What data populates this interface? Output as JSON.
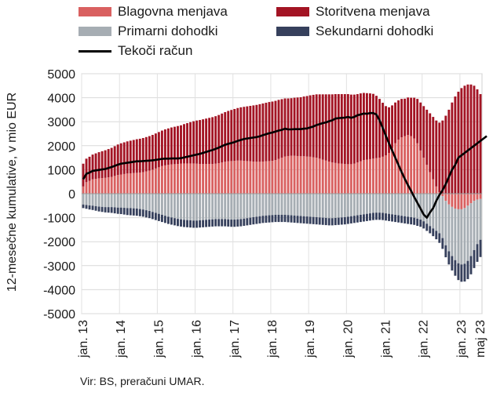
{
  "chart_data": {
    "type": "bar",
    "stacked": true,
    "ylabel": "12-mesečne kumulative, v mio EUR",
    "ylim": [
      -5000,
      5000
    ],
    "yticks": [
      5000,
      4000,
      3000,
      2000,
      1000,
      0,
      -1000,
      -2000,
      -3000,
      -4000,
      -5000
    ],
    "x_tick_labels": [
      "jan. 13",
      "jan. 14",
      "jan. 15",
      "jan. 16",
      "jan. 17",
      "jan. 18",
      "jan. 19",
      "jan. 20",
      "jan. 21",
      "jan. 22",
      "jan. 23",
      "maj 23"
    ],
    "grid": true,
    "legend_position": "top",
    "source": "Vir: BS, preračuni UMAR.",
    "months_start": "2013-01",
    "series": [
      {
        "name": "Blagovna menjava",
        "color": "#d96060",
        "values": [
          300,
          480,
          540,
          600,
          620,
          640,
          650,
          660,
          680,
          700,
          740,
          780,
          800,
          820,
          840,
          850,
          860,
          870,
          880,
          900,
          930,
          960,
          1000,
          1050,
          1100,
          1150,
          1180,
          1200,
          1220,
          1230,
          1240,
          1250,
          1260,
          1260,
          1260,
          1260,
          1250,
          1240,
          1240,
          1240,
          1240,
          1240,
          1250,
          1270,
          1300,
          1330,
          1350,
          1360,
          1370,
          1380,
          1380,
          1370,
          1360,
          1350,
          1340,
          1330,
          1330,
          1340,
          1350,
          1360,
          1370,
          1400,
          1450,
          1500,
          1550,
          1570,
          1580,
          1580,
          1570,
          1560,
          1560,
          1550,
          1540,
          1520,
          1500,
          1460,
          1420,
          1380,
          1340,
          1300,
          1280,
          1260,
          1250,
          1240,
          1230,
          1230,
          1250,
          1300,
          1350,
          1400,
          1420,
          1440,
          1460,
          1480,
          1500,
          1540,
          1600,
          1700,
          1900,
          2100,
          2250,
          2350,
          2400,
          2450,
          2400,
          2300,
          2100,
          1800,
          1500,
          1200,
          900,
          600,
          300,
          60,
          -100,
          -300,
          -450,
          -550,
          -620,
          -650,
          -650,
          -600,
          -500,
          -400,
          -300,
          -250,
          -220
        ]
      },
      {
        "name": "Storitvena menjava",
        "color": "#a31424",
        "values": [
          950,
          980,
          1000,
          1030,
          1060,
          1090,
          1120,
          1150,
          1180,
          1210,
          1240,
          1270,
          1300,
          1320,
          1340,
          1360,
          1380,
          1400,
          1410,
          1420,
          1430,
          1440,
          1450,
          1460,
          1470,
          1480,
          1500,
          1520,
          1540,
          1560,
          1580,
          1600,
          1640,
          1680,
          1720,
          1760,
          1800,
          1830,
          1860,
          1890,
          1920,
          1950,
          1980,
          2010,
          2040,
          2070,
          2100,
          2130,
          2160,
          2190,
          2220,
          2250,
          2280,
          2310,
          2340,
          2370,
          2400,
          2420,
          2440,
          2460,
          2470,
          2470,
          2460,
          2440,
          2420,
          2400,
          2400,
          2420,
          2440,
          2460,
          2490,
          2520,
          2560,
          2600,
          2640,
          2680,
          2720,
          2760,
          2800,
          2840,
          2870,
          2890,
          2900,
          2910,
          2920,
          2900,
          2880,
          2850,
          2830,
          2800,
          2770,
          2740,
          2700,
          2600,
          2450,
          2250,
          2050,
          1900,
          1780,
          1700,
          1640,
          1600,
          1560,
          1560,
          1600,
          1700,
          1850,
          2000,
          2150,
          2300,
          2450,
          2600,
          2750,
          2900,
          3050,
          3250,
          3500,
          3800,
          4050,
          4250,
          4400,
          4500,
          4550,
          4550,
          4500,
          4350,
          4150,
          3950,
          3900
        ]
      },
      {
        "name": "Primarni dohodki",
        "color": "#a6adb3",
        "values": [
          -450,
          -470,
          -490,
          -500,
          -520,
          -540,
          -550,
          -560,
          -560,
          -560,
          -570,
          -580,
          -580,
          -590,
          -600,
          -600,
          -610,
          -620,
          -640,
          -660,
          -690,
          -720,
          -760,
          -800,
          -840,
          -880,
          -920,
          -960,
          -990,
          -1020,
          -1050,
          -1070,
          -1090,
          -1100,
          -1110,
          -1120,
          -1120,
          -1110,
          -1100,
          -1090,
          -1080,
          -1070,
          -1060,
          -1060,
          -1060,
          -1060,
          -1070,
          -1080,
          -1080,
          -1070,
          -1060,
          -1040,
          -1020,
          -1000,
          -980,
          -960,
          -940,
          -920,
          -910,
          -900,
          -890,
          -880,
          -880,
          -880,
          -880,
          -890,
          -900,
          -910,
          -920,
          -930,
          -940,
          -950,
          -960,
          -970,
          -980,
          -990,
          -1000,
          -1010,
          -1020,
          -1020,
          -1010,
          -1000,
          -990,
          -980,
          -960,
          -940,
          -920,
          -900,
          -880,
          -860,
          -840,
          -820,
          -800,
          -790,
          -790,
          -800,
          -820,
          -840,
          -860,
          -880,
          -900,
          -920,
          -940,
          -960,
          -980,
          -1000,
          -1040,
          -1080,
          -1150,
          -1250,
          -1350,
          -1450,
          -1550,
          -1650,
          -1750,
          -1850,
          -1950,
          -2050,
          -2150,
          -2250,
          -2300,
          -2320,
          -2300,
          -2200,
          -2050,
          -1850,
          -1700,
          -1550,
          -1450
        ]
      },
      {
        "name": "Sekundarni dohodki",
        "color": "#36405c",
        "values": [
          -150,
          -160,
          -170,
          -180,
          -190,
          -200,
          -210,
          -220,
          -230,
          -240,
          -250,
          -260,
          -270,
          -280,
          -290,
          -300,
          -300,
          -300,
          -300,
          -300,
          -300,
          -300,
          -300,
          -300,
          -300,
          -300,
          -300,
          -300,
          -300,
          -300,
          -300,
          -300,
          -300,
          -300,
          -300,
          -300,
          -300,
          -300,
          -300,
          -300,
          -300,
          -300,
          -300,
          -300,
          -300,
          -300,
          -300,
          -300,
          -300,
          -300,
          -300,
          -300,
          -300,
          -300,
          -300,
          -300,
          -300,
          -300,
          -300,
          -300,
          -300,
          -300,
          -300,
          -300,
          -300,
          -300,
          -300,
          -300,
          -300,
          -300,
          -300,
          -300,
          -300,
          -300,
          -300,
          -300,
          -300,
          -300,
          -300,
          -300,
          -300,
          -300,
          -300,
          -300,
          -300,
          -300,
          -300,
          -300,
          -300,
          -300,
          -300,
          -300,
          -300,
          -300,
          -300,
          -300,
          -300,
          -300,
          -300,
          -300,
          -300,
          -300,
          -300,
          -300,
          -300,
          -300,
          -300,
          -300,
          -300,
          -300,
          -300,
          -320,
          -350,
          -400,
          -450,
          -500,
          -550,
          -600,
          -650,
          -700,
          -720,
          -740,
          -760,
          -760,
          -750,
          -740,
          -720,
          -700,
          -690
        ]
      },
      {
        "name": "Tekoči račun",
        "type": "line",
        "color": "#000000",
        "values": [
          600,
          830,
          880,
          950,
          970,
          990,
          1010,
          1030,
          1070,
          1110,
          1160,
          1210,
          1250,
          1270,
          1290,
          1310,
          1330,
          1350,
          1350,
          1360,
          1370,
          1380,
          1390,
          1410,
          1430,
          1450,
          1460,
          1460,
          1470,
          1470,
          1470,
          1480,
          1510,
          1540,
          1570,
          1600,
          1630,
          1660,
          1700,
          1740,
          1780,
          1820,
          1870,
          1920,
          1980,
          2040,
          2080,
          2110,
          2150,
          2200,
          2240,
          2280,
          2300,
          2320,
          2340,
          2360,
          2390,
          2440,
          2480,
          2520,
          2550,
          2590,
          2630,
          2660,
          2710,
          2680,
          2680,
          2690,
          2690,
          2690,
          2710,
          2720,
          2760,
          2800,
          2860,
          2900,
          2940,
          2970,
          3020,
          3060,
          3130,
          3150,
          3160,
          3170,
          3200,
          3160,
          3200,
          3270,
          3300,
          3340,
          3330,
          3360,
          3360,
          3300,
          3060,
          2740,
          2410,
          2100,
          1800,
          1500,
          1200,
          900,
          620,
          360,
          120,
          -140,
          -380,
          -620,
          -870,
          -1000,
          -780,
          -600,
          -300,
          -50,
          150,
          400,
          700,
          1000,
          1200,
          1500,
          1600,
          1700,
          1800,
          1900,
          2000,
          2100,
          2200,
          2300,
          2400
        ]
      }
    ]
  },
  "legend": [
    {
      "label": "Blagovna menjava",
      "color": "#d96060",
      "kind": "bar"
    },
    {
      "label": "Storitvena menjava",
      "color": "#a31424",
      "kind": "bar"
    },
    {
      "label": "Primarni dohodki",
      "color": "#a6adb3",
      "kind": "bar"
    },
    {
      "label": "Sekundarni dohodki",
      "color": "#36405c",
      "kind": "bar"
    },
    {
      "label": "Tekoči račun",
      "color": "#000000",
      "kind": "line"
    }
  ]
}
